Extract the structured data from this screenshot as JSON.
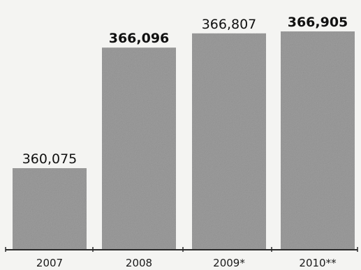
{
  "chart_data": {
    "type": "bar",
    "categories": [
      "2007",
      "2008",
      "2009*",
      "2010**"
    ],
    "values": [
      360075,
      366096,
      366807,
      366905
    ],
    "value_labels": [
      "360,075",
      "366,096",
      "366,807",
      "366,905"
    ],
    "emphasized_value_labels": [
      "366,096",
      "366,905"
    ],
    "title": "",
    "xlabel": "",
    "ylabel": "",
    "ylim": [
      356000,
      367150
    ],
    "grid": false,
    "legend": "none"
  },
  "colors": {
    "bar": "#9d9d9d",
    "baseline": "#2a2a2a",
    "background": "#f4f4f2"
  }
}
